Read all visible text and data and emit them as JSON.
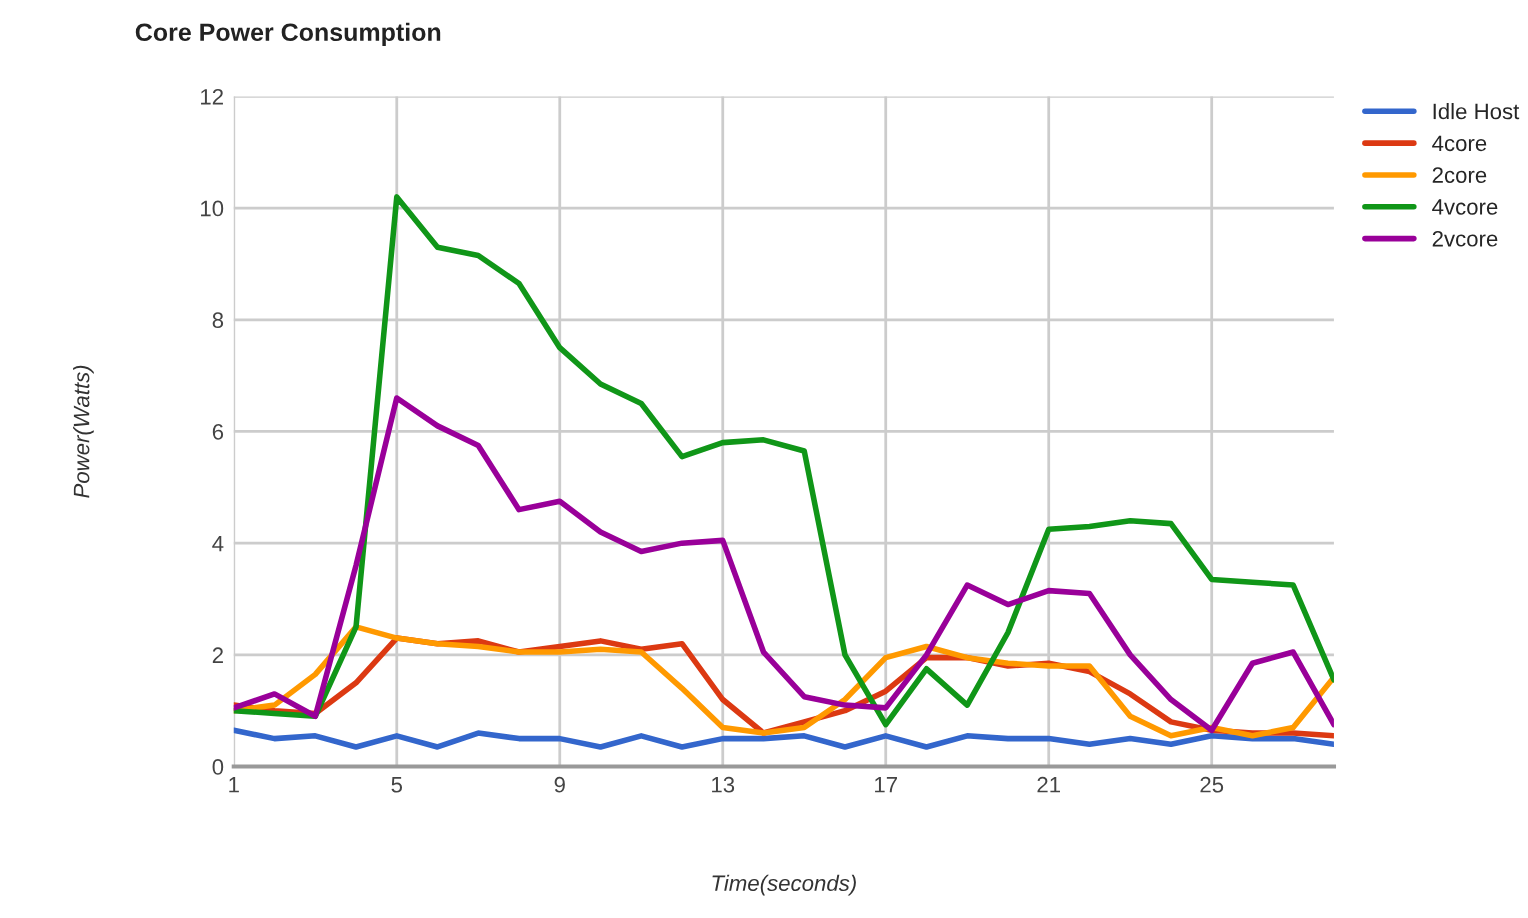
{
  "chart_data": {
    "type": "line",
    "title": "Core Power Consumption",
    "xlabel": "Time(seconds)",
    "ylabel": "Power(Watts)",
    "x": [
      1,
      2,
      3,
      4,
      5,
      6,
      7,
      8,
      9,
      10,
      11,
      12,
      13,
      14,
      15,
      16,
      17,
      18,
      19,
      20,
      21,
      22,
      23,
      24,
      25,
      26,
      27,
      28
    ],
    "xlim": [
      1,
      28
    ],
    "xticks": [
      1,
      5,
      9,
      13,
      17,
      21,
      25
    ],
    "ylim": [
      0,
      12
    ],
    "yticks": [
      0,
      2,
      4,
      6,
      8,
      10,
      12
    ],
    "grid": true,
    "legend": "right",
    "line_style": "solid",
    "marker": "none",
    "series": [
      {
        "name": "Idle Host",
        "color": "#3366cc",
        "values": [
          0.65,
          0.5,
          0.55,
          0.35,
          0.55,
          0.35,
          0.6,
          0.5,
          0.5,
          0.35,
          0.55,
          0.35,
          0.5,
          0.5,
          0.55,
          0.35,
          0.55,
          0.35,
          0.55,
          0.5,
          0.5,
          0.4,
          0.5,
          0.4,
          0.55,
          0.5,
          0.5,
          0.4
        ]
      },
      {
        "name": "4core",
        "color": "#dc3912",
        "values": [
          1.1,
          1.0,
          0.95,
          1.5,
          2.3,
          2.2,
          2.25,
          2.05,
          2.15,
          2.25,
          2.1,
          2.2,
          1.2,
          0.6,
          0.8,
          1.0,
          1.35,
          1.95,
          1.95,
          1.8,
          1.85,
          1.7,
          1.3,
          0.8,
          0.65,
          0.6,
          0.6,
          0.55
        ]
      },
      {
        "name": "2core",
        "color": "#ff9900",
        "values": [
          1.0,
          1.1,
          1.65,
          2.5,
          2.3,
          2.2,
          2.15,
          2.05,
          2.05,
          2.1,
          2.05,
          1.4,
          0.7,
          0.6,
          0.7,
          1.2,
          1.95,
          2.15,
          1.95,
          1.85,
          1.8,
          1.8,
          0.9,
          0.55,
          0.7,
          0.55,
          0.7,
          1.6
        ]
      },
      {
        "name": "4vcore",
        "color": "#109618",
        "values": [
          1.0,
          0.95,
          0.9,
          2.5,
          10.2,
          9.3,
          9.15,
          8.65,
          7.5,
          6.85,
          6.5,
          5.55,
          5.8,
          5.85,
          5.65,
          2.0,
          0.75,
          1.75,
          1.1,
          2.4,
          4.25,
          4.3,
          4.4,
          4.35,
          3.35,
          3.3,
          3.25,
          1.55
        ]
      },
      {
        "name": "2vcore",
        "color": "#990099",
        "values": [
          1.05,
          1.3,
          0.9,
          3.6,
          6.6,
          6.1,
          5.75,
          4.6,
          4.75,
          4.2,
          3.85,
          4.0,
          4.05,
          2.05,
          1.25,
          1.1,
          1.05,
          2.0,
          3.25,
          2.9,
          3.15,
          3.1,
          2.0,
          1.2,
          0.65,
          1.85,
          2.05,
          0.75
        ]
      }
    ]
  }
}
